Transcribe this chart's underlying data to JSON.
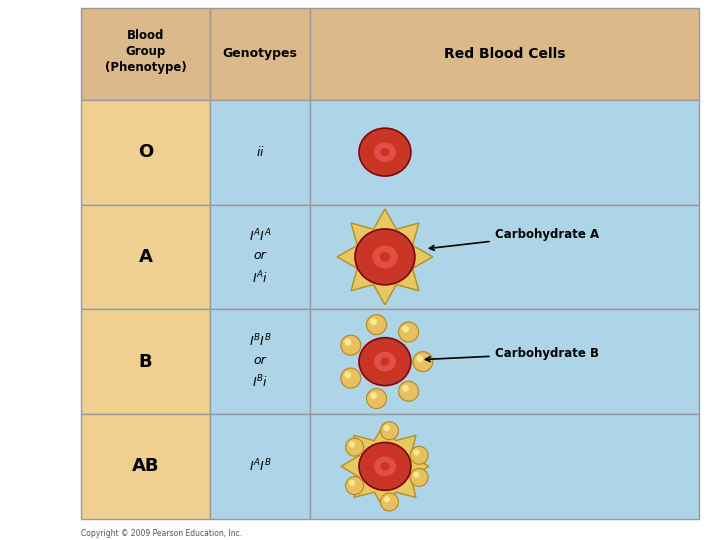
{
  "bg_color": "#ffffff",
  "header_bg": "#dbb98a",
  "row_bg_left": "#f0d090",
  "row_bg_right": "#aed4e8",
  "border_color": "#999999",
  "col1_header": "Blood\nGroup\n(Phenotype)",
  "col2_header": "Genotypes",
  "col3_header": "Red Blood Cells",
  "phenotypes": [
    "O",
    "A",
    "B",
    "AB"
  ],
  "copyright": "Copyright © 2009 Pearson Education, Inc.",
  "rbc_color": "#c0392b",
  "rbc_inner": "#e05045",
  "rbc_edge": "#8b0000",
  "star_color": "#e8c860",
  "star_edge": "#b09020",
  "bubble_color": "#e8c060",
  "bubble_edge": "#b08820",
  "bubble_highlight": "#f8e890"
}
